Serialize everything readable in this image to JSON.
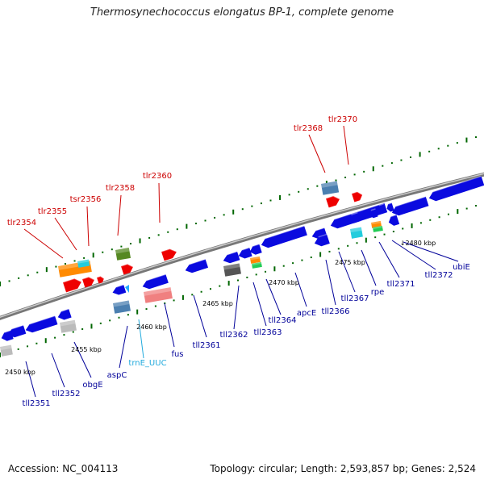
{
  "title": "Thermosynechococcus elongatus BP-1, complete genome",
  "footer": {
    "accession": "Accession: NC_004113",
    "summary": "Topology: circular; Length: 2,593,857 bp; Genes: 2,524"
  },
  "colors": {
    "forward_label": "#cc0000",
    "reverse_label": "#000099",
    "rna_label": "#22aadd",
    "backbone": "#888888",
    "scale_dots": "#006600"
  },
  "scale_labels": [
    "2450 kbp",
    "2455 kbp",
    "2460 kbp",
    "2465 kbp",
    "2470 kbp",
    "2475 kbp",
    "2480 kbp"
  ],
  "forward_genes": [
    "tlr2354",
    "tlr2355",
    "tsr2356",
    "tlr2358",
    "tlr2360",
    "tlr2368",
    "tlr2370"
  ],
  "reverse_genes": [
    "tll2351",
    "tll2352",
    "obgE",
    "aspC",
    "fus",
    "tll2361",
    "tll2362",
    "tll2363",
    "tll2364",
    "apcE",
    "tll2366",
    "tll2367",
    "rpe",
    "tll2371",
    "tll2372",
    "ubiE"
  ],
  "rna_genes": [
    "trnE_UUC"
  ]
}
